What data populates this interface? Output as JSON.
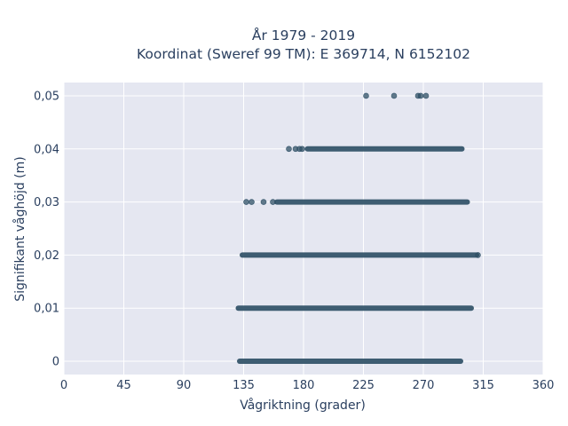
{
  "chart_data": {
    "type": "scatter",
    "title": "År 1979 - 2019",
    "subtitle": "Koordinat (Sweref 99 TM): E 369714, N 6152102",
    "xlabel": "Vågriktning (grader)",
    "ylabel": "Signifikant våghöjd (m)",
    "xlim": [
      0,
      360
    ],
    "ylim": [
      -0.0025,
      0.0525
    ],
    "x_ticks": [
      0,
      45,
      90,
      135,
      180,
      225,
      270,
      315,
      360
    ],
    "x_tick_labels": [
      "0",
      "45",
      "90",
      "135",
      "180",
      "225",
      "270",
      "315",
      "360"
    ],
    "y_ticks": [
      0,
      0.01,
      0.02,
      0.03,
      0.04,
      0.05
    ],
    "y_tick_labels": [
      "0",
      "0,01",
      "0,02",
      "0,03",
      "0,04",
      "0,05"
    ],
    "grid": true,
    "marker_color": "#2f5066",
    "background_color": "#e5e7f1",
    "bands": [
      {
        "y": 0.0,
        "x_min": 132,
        "x_max": 298
      },
      {
        "y": 0.01,
        "x_min": 131,
        "x_max": 306
      },
      {
        "y": 0.02,
        "x_min": 134,
        "x_max": 310
      },
      {
        "y": 0.03,
        "x_min": 160,
        "x_max": 303
      },
      {
        "y": 0.04,
        "x_min": 183,
        "x_max": 299
      }
    ],
    "points": [
      {
        "x": 137,
        "y": 0.03
      },
      {
        "x": 141,
        "y": 0.03
      },
      {
        "x": 150,
        "y": 0.03
      },
      {
        "x": 157,
        "y": 0.03
      },
      {
        "x": 169,
        "y": 0.04
      },
      {
        "x": 174,
        "y": 0.04
      },
      {
        "x": 177,
        "y": 0.04
      },
      {
        "x": 179,
        "y": 0.04
      },
      {
        "x": 227,
        "y": 0.05
      },
      {
        "x": 248,
        "y": 0.05
      },
      {
        "x": 266,
        "y": 0.05
      },
      {
        "x": 268,
        "y": 0.05
      },
      {
        "x": 272,
        "y": 0.05
      },
      {
        "x": 311,
        "y": 0.02
      }
    ]
  }
}
